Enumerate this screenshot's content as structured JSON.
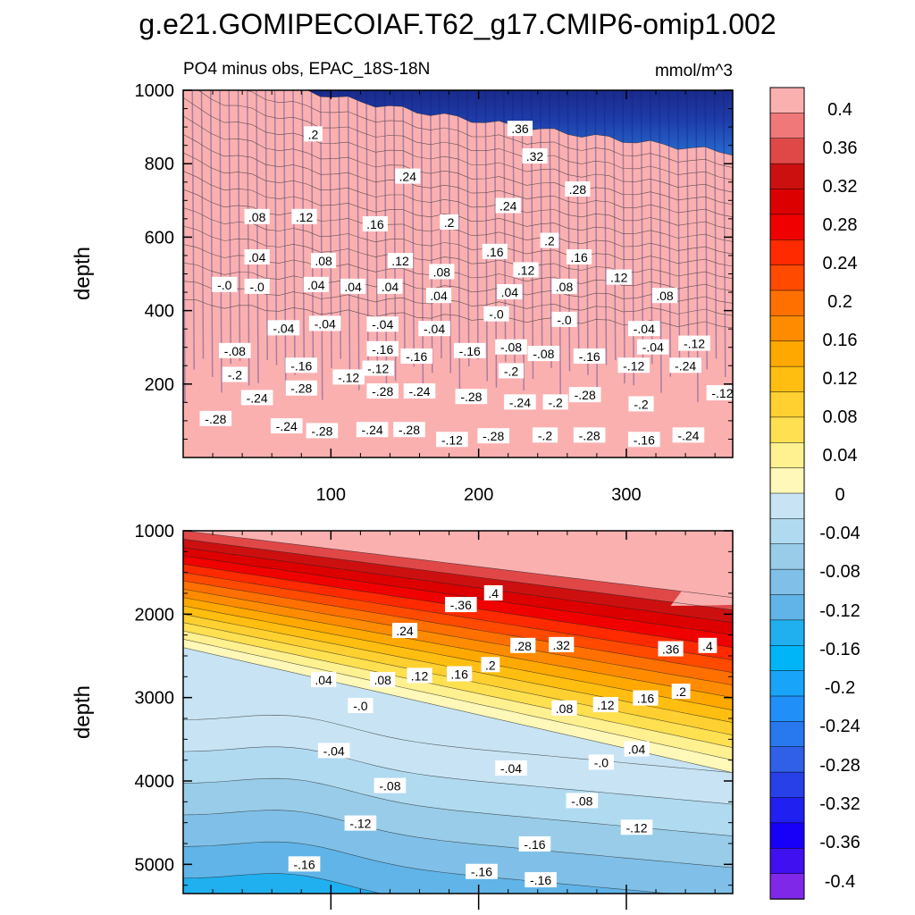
{
  "chart_data": {
    "type": "contour",
    "title": "g.e21.GOMIPECOIAF.T62_g17.CMIP6-omip1.002",
    "subtitle_left": "PO4 minus obs, EPAC_18S-18N",
    "subtitle_right": "mmol/m^3",
    "colorbar": {
      "levels": [
        "0.4",
        "0.36",
        "0.32",
        "0.28",
        "0.24",
        "0.2",
        "0.16",
        "0.12",
        "0.08",
        "0.04",
        "0",
        "-0.04",
        "-0.08",
        "-0.12",
        "-0.16",
        "-0.2",
        "-0.24",
        "-0.28",
        "-0.32",
        "-0.36",
        "-0.4"
      ],
      "colors": [
        "#fbb0b0",
        "#f07878",
        "#e04848",
        "#cc1010",
        "#dc0000",
        "#f00000",
        "#ff2a00",
        "#ff4a00",
        "#ff7000",
        "#ff8c00",
        "#ffa800",
        "#ffbe10",
        "#ffd030",
        "#ffe050",
        "#fff090",
        "#fff8b8",
        "#c8e4f4",
        "#b0daf0",
        "#98cce8",
        "#80c0e8",
        "#60b4e8",
        "#20b0f0",
        "#00b4f8",
        "#18a4f8",
        "#2090f8",
        "#2878f0",
        "#3060e8",
        "#2840e8",
        "#2020f0",
        "#1800f8",
        "#4010f0",
        "#8028e8"
      ]
    },
    "panels": [
      {
        "name": "upper",
        "ylabel": "depth",
        "y_range": [
          1000,
          0
        ],
        "y_ticks": [
          "200",
          "400",
          "600",
          "800",
          "1000"
        ],
        "y_tick_values": [
          200,
          400,
          600,
          800,
          1000
        ],
        "x_range": [
          0,
          372
        ],
        "x_ticks": [
          "100",
          "200",
          "300"
        ],
        "x_tick_values": [
          100,
          200,
          300
        ],
        "contour_labels": [
          {
            "text": "-.28",
            "x": 22,
            "y": 105
          },
          {
            "text": "-.24",
            "x": 50,
            "y": 162
          },
          {
            "text": "-.24",
            "x": 70,
            "y": 85
          },
          {
            "text": "-.28",
            "x": 94,
            "y": 72
          },
          {
            "text": "-.24",
            "x": 128,
            "y": 75
          },
          {
            "text": "-.28",
            "x": 153,
            "y": 75
          },
          {
            "text": "-.12",
            "x": 182,
            "y": 48
          },
          {
            "text": "-.28",
            "x": 210,
            "y": 58
          },
          {
            "text": "-.2",
            "x": 245,
            "y": 60
          },
          {
            "text": "-.28",
            "x": 275,
            "y": 60
          },
          {
            "text": "-.16",
            "x": 312,
            "y": 48
          },
          {
            "text": "-.24",
            "x": 342,
            "y": 60
          },
          {
            "text": "-.28",
            "x": 80,
            "y": 188
          },
          {
            "text": "-.12",
            "x": 112,
            "y": 218
          },
          {
            "text": "-.28",
            "x": 135,
            "y": 180
          },
          {
            "text": "-.24",
            "x": 160,
            "y": 180
          },
          {
            "text": "-.28",
            "x": 195,
            "y": 165
          },
          {
            "text": "-.24",
            "x": 228,
            "y": 150
          },
          {
            "text": "-.2",
            "x": 252,
            "y": 150
          },
          {
            "text": "-.28",
            "x": 272,
            "y": 170
          },
          {
            "text": "-.2",
            "x": 310,
            "y": 145
          },
          {
            "text": "-.12",
            "x": 365,
            "y": 175
          },
          {
            "text": "-.2",
            "x": 35,
            "y": 225
          },
          {
            "text": "-.08",
            "x": 35,
            "y": 290
          },
          {
            "text": "-.16",
            "x": 80,
            "y": 250
          },
          {
            "text": "-.12",
            "x": 132,
            "y": 242
          },
          {
            "text": "-.16",
            "x": 135,
            "y": 295
          },
          {
            "text": "-.16",
            "x": 158,
            "y": 275
          },
          {
            "text": "-.16",
            "x": 194,
            "y": 290
          },
          {
            "text": "-.2",
            "x": 222,
            "y": 235
          },
          {
            "text": "-.08",
            "x": 222,
            "y": 300
          },
          {
            "text": "-.08",
            "x": 244,
            "y": 282
          },
          {
            "text": "-.16",
            "x": 275,
            "y": 275
          },
          {
            "text": "-.12",
            "x": 305,
            "y": 250
          },
          {
            "text": "-.24",
            "x": 340,
            "y": 250
          },
          {
            "text": "-.12",
            "x": 346,
            "y": 310
          },
          {
            "text": "-.04",
            "x": 68,
            "y": 352
          },
          {
            "text": "-.04",
            "x": 96,
            "y": 364
          },
          {
            "text": "-.04",
            "x": 135,
            "y": 362
          },
          {
            "text": "-.04",
            "x": 170,
            "y": 350
          },
          {
            "text": "-.04",
            "x": 312,
            "y": 350
          },
          {
            "text": "-.04",
            "x": 318,
            "y": 300
          },
          {
            "text": "-.0",
            "x": 212,
            "y": 390
          },
          {
            "text": "-.0",
            "x": 258,
            "y": 375
          },
          {
            "text": "-.0",
            "x": 28,
            "y": 470
          },
          {
            "text": "-.0",
            "x": 50,
            "y": 465
          },
          {
            "text": ".04",
            "x": 90,
            "y": 470
          },
          {
            "text": ".04",
            "x": 115,
            "y": 465
          },
          {
            "text": ".04",
            "x": 140,
            "y": 465
          },
          {
            "text": ".04",
            "x": 173,
            "y": 440
          },
          {
            "text": ".04",
            "x": 221,
            "y": 450
          },
          {
            "text": ".08",
            "x": 258,
            "y": 465
          },
          {
            "text": ".08",
            "x": 326,
            "y": 440
          },
          {
            "text": ".12",
            "x": 295,
            "y": 490
          },
          {
            "text": ".04",
            "x": 50,
            "y": 545
          },
          {
            "text": ".08",
            "x": 95,
            "y": 535
          },
          {
            "text": ".12",
            "x": 147,
            "y": 535
          },
          {
            "text": ".08",
            "x": 175,
            "y": 505
          },
          {
            "text": ".12",
            "x": 232,
            "y": 510
          },
          {
            "text": ".16",
            "x": 211,
            "y": 560
          },
          {
            "text": ".16",
            "x": 268,
            "y": 545
          },
          {
            "text": ".2",
            "x": 248,
            "y": 590
          },
          {
            "text": ".08",
            "x": 50,
            "y": 655
          },
          {
            "text": ".12",
            "x": 82,
            "y": 655
          },
          {
            "text": ".16",
            "x": 130,
            "y": 635
          },
          {
            "text": ".2",
            "x": 180,
            "y": 640
          },
          {
            "text": ".24",
            "x": 220,
            "y": 685
          },
          {
            "text": ".28",
            "x": 267,
            "y": 730
          },
          {
            "text": ".24",
            "x": 152,
            "y": 765
          },
          {
            "text": ".32",
            "x": 238,
            "y": 820
          },
          {
            "text": ".2",
            "x": 88,
            "y": 880
          },
          {
            "text": ".36",
            "x": 228,
            "y": 895
          }
        ]
      },
      {
        "name": "lower",
        "ylabel": "depth",
        "y_range": [
          1000,
          5350
        ],
        "y_ticks": [
          "1000",
          "2000",
          "3000",
          "4000",
          "5000"
        ],
        "y_tick_values": [
          1000,
          2000,
          3000,
          4000,
          5000
        ],
        "x_range": [
          0,
          372
        ],
        "x_ticks": [],
        "x_tick_values": [],
        "contour_labels": [
          {
            "text": ".4",
            "x": 210,
            "y": 1750
          },
          {
            "text": "-.36",
            "x": 188,
            "y": 1890
          },
          {
            "text": ".24",
            "x": 150,
            "y": 2200
          },
          {
            "text": ".28",
            "x": 230,
            "y": 2380
          },
          {
            "text": ".32",
            "x": 256,
            "y": 2370
          },
          {
            "text": ".36",
            "x": 330,
            "y": 2420
          },
          {
            "text": ".4",
            "x": 355,
            "y": 2380
          },
          {
            "text": ".04",
            "x": 95,
            "y": 2790
          },
          {
            "text": ".08",
            "x": 135,
            "y": 2790
          },
          {
            "text": ".12",
            "x": 160,
            "y": 2740
          },
          {
            "text": ".16",
            "x": 187,
            "y": 2720
          },
          {
            "text": ".2",
            "x": 208,
            "y": 2610
          },
          {
            "text": ".08",
            "x": 258,
            "y": 3130
          },
          {
            "text": ".12",
            "x": 286,
            "y": 3090
          },
          {
            "text": ".16",
            "x": 313,
            "y": 3010
          },
          {
            "text": ".2",
            "x": 337,
            "y": 2930
          },
          {
            "text": "-.0",
            "x": 120,
            "y": 3100
          },
          {
            "text": "-.04",
            "x": 102,
            "y": 3640
          },
          {
            "text": ".04",
            "x": 307,
            "y": 3620
          },
          {
            "text": "-.0",
            "x": 283,
            "y": 3780
          },
          {
            "text": "-.04",
            "x": 222,
            "y": 3850
          },
          {
            "text": "-.08",
            "x": 140,
            "y": 4060
          },
          {
            "text": "-.08",
            "x": 270,
            "y": 4240
          },
          {
            "text": "-.12",
            "x": 120,
            "y": 4510
          },
          {
            "text": "-.12",
            "x": 307,
            "y": 4560
          },
          {
            "text": "-.16",
            "x": 238,
            "y": 4760
          },
          {
            "text": "-.16",
            "x": 82,
            "y": 5000
          },
          {
            "text": "-.16",
            "x": 202,
            "y": 5090
          },
          {
            "text": "-.16",
            "x": 242,
            "y": 5190
          }
        ]
      }
    ]
  }
}
